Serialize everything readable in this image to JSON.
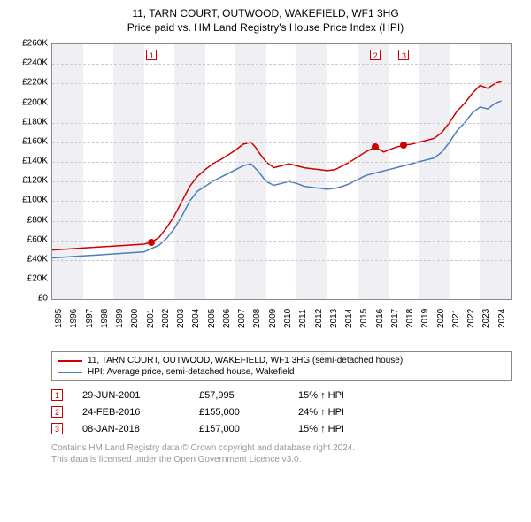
{
  "title_line1": "11, TARN COURT, OUTWOOD, WAKEFIELD, WF1 3HG",
  "title_line2": "Price paid vs. HM Land Registry's House Price Index (HPI)",
  "title_fontsize": 12,
  "chart": {
    "type": "line",
    "background_color": "#ffffff",
    "alt_band_color": "#f0f0f4",
    "grid_color": "#cccccc",
    "axis_color": "#888888",
    "x_years": [
      1995,
      1996,
      1997,
      1998,
      1999,
      2000,
      2001,
      2002,
      2003,
      2004,
      2005,
      2006,
      2007,
      2008,
      2009,
      2010,
      2011,
      2012,
      2013,
      2014,
      2015,
      2016,
      2017,
      2018,
      2019,
      2020,
      2021,
      2022,
      2023,
      2024
    ],
    "x_range_start": 1995,
    "x_range_end": 2025,
    "y_ticks": [
      0,
      20000,
      40000,
      60000,
      80000,
      100000,
      120000,
      140000,
      160000,
      180000,
      200000,
      220000,
      240000,
      260000
    ],
    "y_tick_labels": [
      "£0",
      "£20K",
      "£40K",
      "£60K",
      "£80K",
      "£100K",
      "£120K",
      "£140K",
      "£160K",
      "£180K",
      "£200K",
      "£220K",
      "£240K",
      "£260K"
    ],
    "ylim": [
      0,
      260000
    ],
    "label_fontsize": 10,
    "band_year_width": 2,
    "series": [
      {
        "name": "property",
        "label": "11, TARN COURT, OUTWOOD, WAKEFIELD, WF1 3HG (semi-detached house)",
        "color": "#cc0000",
        "line_width": 1.5,
        "data": [
          [
            1995.0,
            50000
          ],
          [
            1996.0,
            51000
          ],
          [
            1997.0,
            52000
          ],
          [
            1998.0,
            53000
          ],
          [
            1999.0,
            54000
          ],
          [
            2000.0,
            55000
          ],
          [
            2001.0,
            56000
          ],
          [
            2001.5,
            57995
          ],
          [
            2002.0,
            63000
          ],
          [
            2002.5,
            73000
          ],
          [
            2003.0,
            85000
          ],
          [
            2003.5,
            100000
          ],
          [
            2004.0,
            115000
          ],
          [
            2004.5,
            125000
          ],
          [
            2005.0,
            132000
          ],
          [
            2005.5,
            138000
          ],
          [
            2006.0,
            142000
          ],
          [
            2006.5,
            147000
          ],
          [
            2007.0,
            152000
          ],
          [
            2007.5,
            158000
          ],
          [
            2008.0,
            160000
          ],
          [
            2008.3,
            155000
          ],
          [
            2008.6,
            148000
          ],
          [
            2009.0,
            140000
          ],
          [
            2009.5,
            134000
          ],
          [
            2010.0,
            136000
          ],
          [
            2010.5,
            138000
          ],
          [
            2011.0,
            136000
          ],
          [
            2011.5,
            134000
          ],
          [
            2012.0,
            133000
          ],
          [
            2012.5,
            132000
          ],
          [
            2013.0,
            131000
          ],
          [
            2013.5,
            132000
          ],
          [
            2014.0,
            136000
          ],
          [
            2014.5,
            140000
          ],
          [
            2015.0,
            145000
          ],
          [
            2015.5,
            150000
          ],
          [
            2016.0,
            154000
          ],
          [
            2016.15,
            155000
          ],
          [
            2016.7,
            150000
          ],
          [
            2017.0,
            152000
          ],
          [
            2017.5,
            155000
          ],
          [
            2018.0,
            157000
          ],
          [
            2018.5,
            158000
          ],
          [
            2019.0,
            160000
          ],
          [
            2019.5,
            162000
          ],
          [
            2020.0,
            164000
          ],
          [
            2020.5,
            170000
          ],
          [
            2021.0,
            180000
          ],
          [
            2021.5,
            192000
          ],
          [
            2022.0,
            200000
          ],
          [
            2022.5,
            210000
          ],
          [
            2023.0,
            218000
          ],
          [
            2023.5,
            215000
          ],
          [
            2024.0,
            220000
          ],
          [
            2024.4,
            222000
          ]
        ]
      },
      {
        "name": "hpi",
        "label": "HPI: Average price, semi-detached house, Wakefield",
        "color": "#4a7ebb",
        "line_width": 1.5,
        "data": [
          [
            1995.0,
            42000
          ],
          [
            1996.0,
            43000
          ],
          [
            1997.0,
            44000
          ],
          [
            1998.0,
            45000
          ],
          [
            1999.0,
            46000
          ],
          [
            2000.0,
            47000
          ],
          [
            2001.0,
            48000
          ],
          [
            2002.0,
            55000
          ],
          [
            2002.5,
            62000
          ],
          [
            2003.0,
            72000
          ],
          [
            2003.5,
            85000
          ],
          [
            2004.0,
            100000
          ],
          [
            2004.5,
            110000
          ],
          [
            2005.0,
            115000
          ],
          [
            2005.5,
            120000
          ],
          [
            2006.0,
            124000
          ],
          [
            2006.5,
            128000
          ],
          [
            2007.0,
            132000
          ],
          [
            2007.5,
            136000
          ],
          [
            2008.0,
            138000
          ],
          [
            2008.5,
            130000
          ],
          [
            2009.0,
            120000
          ],
          [
            2009.5,
            116000
          ],
          [
            2010.0,
            118000
          ],
          [
            2010.5,
            120000
          ],
          [
            2011.0,
            118000
          ],
          [
            2011.5,
            115000
          ],
          [
            2012.0,
            114000
          ],
          [
            2012.5,
            113000
          ],
          [
            2013.0,
            112000
          ],
          [
            2013.5,
            113000
          ],
          [
            2014.0,
            115000
          ],
          [
            2014.5,
            118000
          ],
          [
            2015.0,
            122000
          ],
          [
            2015.5,
            126000
          ],
          [
            2016.0,
            128000
          ],
          [
            2016.5,
            130000
          ],
          [
            2017.0,
            132000
          ],
          [
            2017.5,
            134000
          ],
          [
            2018.0,
            136000
          ],
          [
            2018.5,
            138000
          ],
          [
            2019.0,
            140000
          ],
          [
            2019.5,
            142000
          ],
          [
            2020.0,
            144000
          ],
          [
            2020.5,
            150000
          ],
          [
            2021.0,
            160000
          ],
          [
            2021.5,
            172000
          ],
          [
            2022.0,
            180000
          ],
          [
            2022.5,
            190000
          ],
          [
            2023.0,
            196000
          ],
          [
            2023.5,
            194000
          ],
          [
            2024.0,
            200000
          ],
          [
            2024.4,
            202000
          ]
        ]
      }
    ],
    "flags": [
      {
        "n": "1",
        "year": 2001.5,
        "color": "#cc0000"
      },
      {
        "n": "2",
        "year": 2016.15,
        "color": "#cc0000"
      },
      {
        "n": "3",
        "year": 2018.02,
        "color": "#cc0000"
      }
    ],
    "sale_dots": [
      {
        "year": 2001.5,
        "value": 57995,
        "color": "#cc0000"
      },
      {
        "year": 2016.15,
        "value": 155000,
        "color": "#cc0000"
      },
      {
        "year": 2018.02,
        "value": 157000,
        "color": "#cc0000"
      }
    ]
  },
  "legend": {
    "border_color": "#888888",
    "fontsize": 10
  },
  "sales_table": {
    "fontsize": 11,
    "diff_suffix": " ↑ HPI",
    "rows": [
      {
        "n": "1",
        "color": "#cc0000",
        "date": "29-JUN-2001",
        "price": "£57,995",
        "diff": "15%"
      },
      {
        "n": "2",
        "color": "#cc0000",
        "date": "24-FEB-2016",
        "price": "£155,000",
        "diff": "24%"
      },
      {
        "n": "3",
        "color": "#cc0000",
        "date": "08-JAN-2018",
        "price": "£157,000",
        "diff": "15%"
      }
    ]
  },
  "footer": {
    "line1": "Contains HM Land Registry data © Crown copyright and database right 2024.",
    "line2": "This data is licensed under the Open Government Licence v3.0.",
    "color": "#999999",
    "fontsize": 10
  }
}
